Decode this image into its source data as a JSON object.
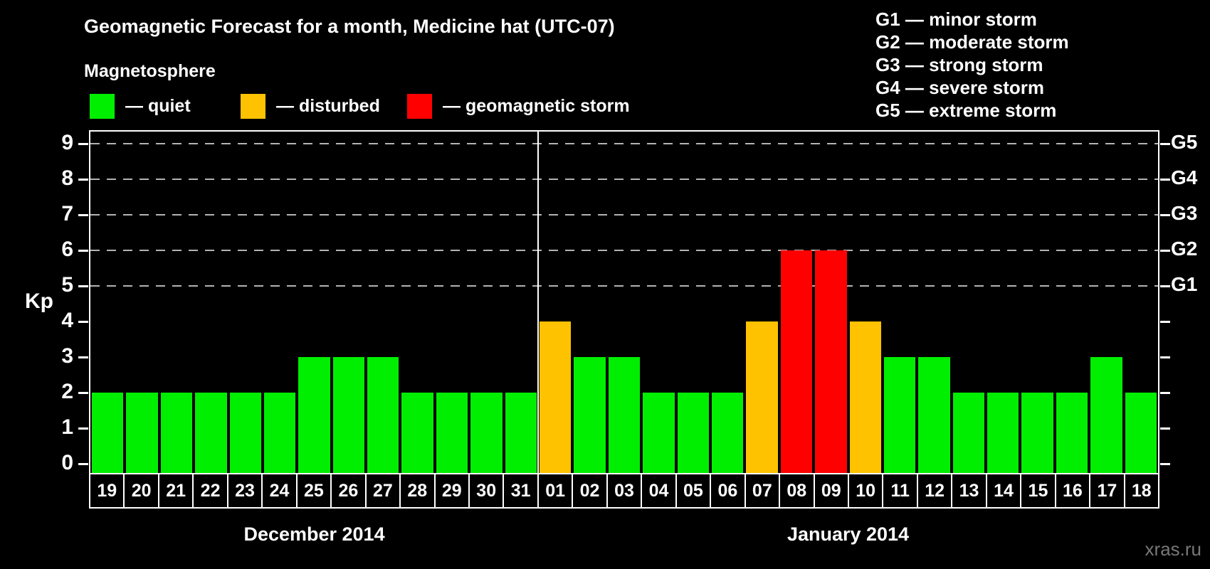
{
  "header": {
    "title": "Geomagnetic Forecast for a month, Medicine hat (UTC-07)",
    "subtitle": "Magnetosphere"
  },
  "legend": [
    {
      "label": "— quiet",
      "status": "quiet"
    },
    {
      "label": "— disturbed",
      "status": "disturbed"
    },
    {
      "label": "— geomagnetic storm",
      "status": "storm"
    }
  ],
  "g_legend": [
    "G1 — minor storm",
    "G2 — moderate storm",
    "G3 — strong storm",
    "G4 — severe storm",
    "G5 — extreme storm"
  ],
  "colors": {
    "quiet": "#00ef00",
    "disturbed": "#ffc200",
    "storm": "#ff0000",
    "grid": "#b3b3b3",
    "axis": "#ffffff",
    "background": "#000000"
  },
  "chart_data": {
    "type": "bar",
    "title": "Geomagnetic Forecast for a month, Medicine hat (UTC-07)",
    "ylabel": "Kp",
    "ylim": [
      0,
      9.35
    ],
    "yticks": [
      0,
      1,
      2,
      3,
      4,
      5,
      6,
      7,
      8,
      9
    ],
    "grid_values": [
      5,
      6,
      7,
      8,
      9
    ],
    "grid": "dashed, horizontal only, at Kp 5-9",
    "legend_position": "top-left",
    "right_axis_labels": [
      {
        "value": 5,
        "label": "G1"
      },
      {
        "value": 6,
        "label": "G2"
      },
      {
        "value": 7,
        "label": "G3"
      },
      {
        "value": 8,
        "label": "G4"
      },
      {
        "value": 9,
        "label": "G5"
      }
    ],
    "sections": [
      {
        "month_label": "December 2014",
        "days": [
          {
            "day": "19",
            "kp": 2,
            "status": "quiet"
          },
          {
            "day": "20",
            "kp": 2,
            "status": "quiet"
          },
          {
            "day": "21",
            "kp": 2,
            "status": "quiet"
          },
          {
            "day": "22",
            "kp": 2,
            "status": "quiet"
          },
          {
            "day": "23",
            "kp": 2,
            "status": "quiet"
          },
          {
            "day": "24",
            "kp": 2,
            "status": "quiet"
          },
          {
            "day": "25",
            "kp": 3,
            "status": "quiet"
          },
          {
            "day": "26",
            "kp": 3,
            "status": "quiet"
          },
          {
            "day": "27",
            "kp": 3,
            "status": "quiet"
          },
          {
            "day": "28",
            "kp": 2,
            "status": "quiet"
          },
          {
            "day": "29",
            "kp": 2,
            "status": "quiet"
          },
          {
            "day": "30",
            "kp": 2,
            "status": "quiet"
          },
          {
            "day": "31",
            "kp": 2,
            "status": "quiet"
          }
        ]
      },
      {
        "month_label": "January 2014",
        "days": [
          {
            "day": "01",
            "kp": 4,
            "status": "disturbed"
          },
          {
            "day": "02",
            "kp": 3,
            "status": "quiet"
          },
          {
            "day": "03",
            "kp": 3,
            "status": "quiet"
          },
          {
            "day": "04",
            "kp": 2,
            "status": "quiet"
          },
          {
            "day": "05",
            "kp": 2,
            "status": "quiet"
          },
          {
            "day": "06",
            "kp": 2,
            "status": "quiet"
          },
          {
            "day": "07",
            "kp": 4,
            "status": "disturbed"
          },
          {
            "day": "08",
            "kp": 6,
            "status": "storm"
          },
          {
            "day": "09",
            "kp": 6,
            "status": "storm"
          },
          {
            "day": "10",
            "kp": 4,
            "status": "disturbed"
          },
          {
            "day": "11",
            "kp": 3,
            "status": "quiet"
          },
          {
            "day": "12",
            "kp": 3,
            "status": "quiet"
          },
          {
            "day": "13",
            "kp": 2,
            "status": "quiet"
          },
          {
            "day": "14",
            "kp": 2,
            "status": "quiet"
          },
          {
            "day": "15",
            "kp": 2,
            "status": "quiet"
          },
          {
            "day": "16",
            "kp": 2,
            "status": "quiet"
          },
          {
            "day": "17",
            "kp": 3,
            "status": "quiet"
          },
          {
            "day": "18",
            "kp": 2,
            "status": "quiet"
          }
        ]
      }
    ]
  },
  "watermark": {
    "label": "xras.ru"
  }
}
